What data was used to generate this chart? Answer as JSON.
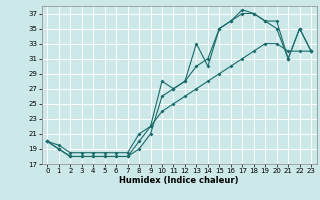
{
  "title": "",
  "xlabel": "Humidex (Indice chaleur)",
  "bg_color": "#cce8e8",
  "grid_color": "#ffffff",
  "line_color": "#1a6b6b",
  "xlim": [
    -0.5,
    23.5
  ],
  "ylim": [
    17,
    38
  ],
  "yticks": [
    17,
    19,
    21,
    23,
    25,
    27,
    29,
    31,
    33,
    35,
    37
  ],
  "xticks": [
    0,
    1,
    2,
    3,
    4,
    5,
    6,
    7,
    8,
    9,
    10,
    11,
    12,
    13,
    14,
    15,
    16,
    17,
    18,
    19,
    20,
    21,
    22,
    23
  ],
  "hours": [
    0,
    1,
    2,
    3,
    4,
    5,
    6,
    7,
    8,
    9,
    10,
    11,
    12,
    13,
    14,
    15,
    16,
    17,
    18,
    19,
    20,
    21,
    22,
    23
  ],
  "line1_y": [
    20,
    19,
    18,
    18,
    18,
    18,
    18,
    18,
    19,
    21,
    26,
    27,
    28,
    30,
    31,
    35,
    36,
    37,
    37,
    36,
    36,
    31,
    35,
    32
  ],
  "line2_y": [
    20,
    19,
    18,
    18,
    18,
    18,
    18,
    18,
    20,
    22,
    24,
    25,
    26,
    27,
    28,
    29,
    30,
    31,
    32,
    33,
    33,
    32,
    32,
    32
  ],
  "line3_y": [
    20,
    19.5,
    18.5,
    18.5,
    18.5,
    18.5,
    18.5,
    18.5,
    21,
    22,
    28,
    27,
    28,
    33,
    30,
    35,
    36,
    37.5,
    37,
    36,
    35,
    31,
    35,
    32
  ]
}
